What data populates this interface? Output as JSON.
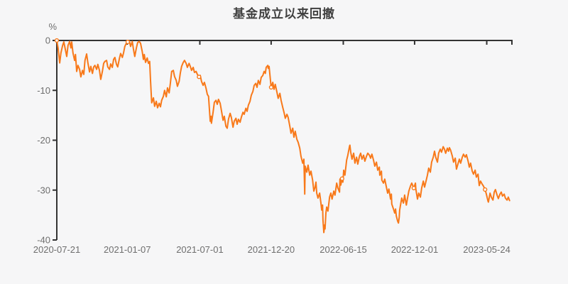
{
  "colors": {
    "background": "#f6f6f7",
    "line": "#f8791a",
    "marker_fill": "#ffffff",
    "axis": "#333333",
    "tick_label": "#6e6e6e",
    "title": "#404040"
  },
  "chart_data": {
    "type": "line",
    "title": "基金成立以来回撤",
    "ylabel": "%",
    "xlabel": "",
    "legend": [],
    "grid": false,
    "x_unit": "days since 2020-07-21",
    "x_domain": [
      0,
      1096
    ],
    "ylim": [
      -40,
      0
    ],
    "y_ticks": [
      0,
      -10,
      -20,
      -30,
      -40
    ],
    "x_ticks": [
      {
        "day": 0,
        "label": "2020-07-21"
      },
      {
        "day": 170,
        "label": "2021-01-07"
      },
      {
        "day": 345,
        "label": "2021-07-01"
      },
      {
        "day": 517,
        "label": "2021-12-20"
      },
      {
        "day": 691,
        "label": "2022-06-15"
      },
      {
        "day": 863,
        "label": "2022-12-01"
      },
      {
        "day": 1037,
        "label": "2023-05-24"
      }
    ],
    "markers": [
      [
        0,
        0
      ],
      [
        171,
        -0.3
      ],
      [
        343,
        -7.3
      ],
      [
        517,
        -9.4
      ],
      [
        688,
        -27.7
      ],
      [
        861,
        -29.6
      ],
      [
        1033,
        -29.9
      ]
    ],
    "points": [
      [
        0,
        0
      ],
      [
        3,
        -1.5
      ],
      [
        7,
        -4.5
      ],
      [
        10,
        -2.5
      ],
      [
        14,
        -1
      ],
      [
        17,
        -0.3
      ],
      [
        21,
        -2
      ],
      [
        24,
        -3.2
      ],
      [
        27,
        -1
      ],
      [
        31,
        -0.2
      ],
      [
        34,
        -1.5
      ],
      [
        36,
        -0.3
      ],
      [
        39,
        -2.5
      ],
      [
        43,
        -4
      ],
      [
        45,
        -2.8
      ],
      [
        48,
        -6.2
      ],
      [
        51,
        -5
      ],
      [
        55,
        -5.8
      ],
      [
        58,
        -7.3
      ],
      [
        62,
        -6
      ],
      [
        65,
        -6.8
      ],
      [
        68,
        -4
      ],
      [
        72,
        -2.7
      ],
      [
        75,
        -4.5
      ],
      [
        79,
        -6.3
      ],
      [
        82,
        -5.2
      ],
      [
        86,
        -6.6
      ],
      [
        89,
        -5.3
      ],
      [
        92,
        -5
      ],
      [
        96,
        -5.8
      ],
      [
        99,
        -4.8
      ],
      [
        103,
        -6
      ],
      [
        106,
        -7.8
      ],
      [
        110,
        -6.2
      ],
      [
        113,
        -4.6
      ],
      [
        116,
        -4.2
      ],
      [
        120,
        -4
      ],
      [
        123,
        -5.3
      ],
      [
        127,
        -5.8
      ],
      [
        130,
        -4.7
      ],
      [
        134,
        -5.4
      ],
      [
        137,
        -3.8
      ],
      [
        140,
        -3.4
      ],
      [
        144,
        -4.8
      ],
      [
        147,
        -5.3
      ],
      [
        151,
        -3.6
      ],
      [
        154,
        -2.6
      ],
      [
        158,
        -3.4
      ],
      [
        161,
        -2.5
      ],
      [
        164,
        -1.2
      ],
      [
        168,
        -0.5
      ],
      [
        171,
        -0.3
      ],
      [
        175,
        -0.1
      ],
      [
        178,
        -1.2
      ],
      [
        182,
        -0.2
      ],
      [
        185,
        -1.8
      ],
      [
        188,
        -3.2
      ],
      [
        192,
        -1.5
      ],
      [
        195,
        -0.4
      ],
      [
        199,
        -0.2
      ],
      [
        202,
        -0.6
      ],
      [
        206,
        -2.2
      ],
      [
        209,
        -3.8
      ],
      [
        211,
        -2.8
      ],
      [
        214,
        -4.4
      ],
      [
        218,
        -3.5
      ],
      [
        221,
        -4.6
      ],
      [
        224,
        -4.2
      ],
      [
        226,
        -8
      ],
      [
        228,
        -11
      ],
      [
        229,
        -12.5
      ],
      [
        233,
        -11.5
      ],
      [
        236,
        -13.2
      ],
      [
        240,
        -12.2
      ],
      [
        243,
        -13.5
      ],
      [
        247,
        -12.6
      ],
      [
        250,
        -13.3
      ],
      [
        253,
        -12
      ],
      [
        257,
        -11.2
      ],
      [
        260,
        -10
      ],
      [
        264,
        -11.3
      ],
      [
        267,
        -9.5
      ],
      [
        271,
        -10.5
      ],
      [
        274,
        -8.5
      ],
      [
        277,
        -6.2
      ],
      [
        281,
        -6
      ],
      [
        284,
        -7.2
      ],
      [
        288,
        -8
      ],
      [
        291,
        -9.2
      ],
      [
        295,
        -8.2
      ],
      [
        298,
        -6.5
      ],
      [
        301,
        -5.2
      ],
      [
        305,
        -4.4
      ],
      [
        308,
        -4
      ],
      [
        312,
        -4.6
      ],
      [
        315,
        -5.4
      ],
      [
        319,
        -4.6
      ],
      [
        322,
        -5.2
      ],
      [
        325,
        -6
      ],
      [
        329,
        -5.4
      ],
      [
        332,
        -6.4
      ],
      [
        336,
        -6.2
      ],
      [
        339,
        -6.8
      ],
      [
        343,
        -7.3
      ],
      [
        346,
        -7
      ],
      [
        349,
        -8.2
      ],
      [
        353,
        -9
      ],
      [
        356,
        -8.4
      ],
      [
        360,
        -9.6
      ],
      [
        363,
        -10.8
      ],
      [
        366,
        -11.2
      ],
      [
        370,
        -16.2
      ],
      [
        372,
        -15.2
      ],
      [
        373,
        -16.6
      ],
      [
        377,
        -14.4
      ],
      [
        380,
        -12.4
      ],
      [
        384,
        -12
      ],
      [
        387,
        -12.8
      ],
      [
        390,
        -11.8
      ],
      [
        394,
        -12.6
      ],
      [
        397,
        -14
      ],
      [
        401,
        -16
      ],
      [
        404,
        -15.2
      ],
      [
        408,
        -17.2
      ],
      [
        411,
        -17.6
      ],
      [
        414,
        -15.8
      ],
      [
        418,
        -14.6
      ],
      [
        421,
        -15.4
      ],
      [
        425,
        -17.4
      ],
      [
        428,
        -16.2
      ],
      [
        432,
        -15.6
      ],
      [
        435,
        -16.8
      ],
      [
        438,
        -15.8
      ],
      [
        442,
        -16.4
      ],
      [
        445,
        -15.4
      ],
      [
        449,
        -14.4
      ],
      [
        452,
        -14.8
      ],
      [
        456,
        -13.6
      ],
      [
        459,
        -14.2
      ],
      [
        462,
        -13
      ],
      [
        466,
        -12.2
      ],
      [
        469,
        -11
      ],
      [
        473,
        -10.2
      ],
      [
        476,
        -9
      ],
      [
        480,
        -8.6
      ],
      [
        483,
        -9.4
      ],
      [
        486,
        -8
      ],
      [
        490,
        -8.8
      ],
      [
        493,
        -7.4
      ],
      [
        497,
        -7
      ],
      [
        500,
        -6.2
      ],
      [
        503,
        -6.6
      ],
      [
        505,
        -5.4
      ],
      [
        509,
        -5
      ],
      [
        510,
        -5.6
      ],
      [
        512,
        -5.2
      ],
      [
        514,
        -6.8
      ],
      [
        517,
        -9.4
      ],
      [
        521,
        -8.4
      ],
      [
        524,
        -9.8
      ],
      [
        527,
        -8.8
      ],
      [
        531,
        -10.4
      ],
      [
        534,
        -11.6
      ],
      [
        538,
        -10.6
      ],
      [
        541,
        -12
      ],
      [
        545,
        -13.4
      ],
      [
        548,
        -14.4
      ],
      [
        551,
        -15.6
      ],
      [
        555,
        -14.8
      ],
      [
        558,
        -15.4
      ],
      [
        562,
        -17.2
      ],
      [
        565,
        -18.6
      ],
      [
        569,
        -17.6
      ],
      [
        572,
        -19.4
      ],
      [
        575,
        -18.2
      ],
      [
        579,
        -19.8
      ],
      [
        582,
        -20.4
      ],
      [
        586,
        -21.6
      ],
      [
        589,
        -23.2
      ],
      [
        593,
        -24.6
      ],
      [
        596,
        -23.8
      ],
      [
        598,
        -30.8
      ],
      [
        599,
        -25.2
      ],
      [
        603,
        -26.4
      ],
      [
        606,
        -25
      ],
      [
        610,
        -27
      ],
      [
        613,
        -26.2
      ],
      [
        617,
        -28
      ],
      [
        620,
        -30.2
      ],
      [
        623,
        -29.4
      ],
      [
        625,
        -28.4
      ],
      [
        627,
        -30.6
      ],
      [
        630,
        -31.6
      ],
      [
        634,
        -30.6
      ],
      [
        637,
        -32.6
      ],
      [
        639,
        -34
      ],
      [
        641,
        -33
      ],
      [
        642,
        -36
      ],
      [
        644,
        -38.5
      ],
      [
        646,
        -37
      ],
      [
        647,
        -37.8
      ],
      [
        649,
        -34.6
      ],
      [
        651,
        -33.4
      ],
      [
        654,
        -34.2
      ],
      [
        658,
        -31.4
      ],
      [
        661,
        -30.6
      ],
      [
        664,
        -31.8
      ],
      [
        668,
        -30.2
      ],
      [
        671,
        -31
      ],
      [
        675,
        -28.6
      ],
      [
        678,
        -29.6
      ],
      [
        682,
        -30.4
      ],
      [
        683,
        -27.8
      ],
      [
        685,
        -29
      ],
      [
        688,
        -27.7
      ],
      [
        690,
        -28.4
      ],
      [
        692,
        -26
      ],
      [
        695,
        -27
      ],
      [
        699,
        -24
      ],
      [
        702,
        -23
      ],
      [
        706,
        -21.2
      ],
      [
        707,
        -21
      ],
      [
        709,
        -22.4
      ],
      [
        712,
        -23.8
      ],
      [
        716,
        -22.6
      ],
      [
        719,
        -24.6
      ],
      [
        723,
        -23.4
      ],
      [
        726,
        -24.8
      ],
      [
        730,
        -23.2
      ],
      [
        733,
        -22.6
      ],
      [
        736,
        -23.8
      ],
      [
        740,
        -23
      ],
      [
        743,
        -24.2
      ],
      [
        747,
        -23.2
      ],
      [
        750,
        -22.6
      ],
      [
        754,
        -23
      ],
      [
        757,
        -23.6
      ],
      [
        760,
        -22.8
      ],
      [
        764,
        -24
      ],
      [
        767,
        -25.2
      ],
      [
        771,
        -24.4
      ],
      [
        774,
        -26
      ],
      [
        778,
        -25.4
      ],
      [
        779,
        -27
      ],
      [
        783,
        -26.2
      ],
      [
        784,
        -28
      ],
      [
        788,
        -28.6
      ],
      [
        791,
        -27.8
      ],
      [
        795,
        -29.4
      ],
      [
        798,
        -30.6
      ],
      [
        801,
        -29.8
      ],
      [
        805,
        -31.8
      ],
      [
        807,
        -30.8
      ],
      [
        808,
        -32.8
      ],
      [
        812,
        -33.8
      ],
      [
        815,
        -34.6
      ],
      [
        817,
        -33.8
      ],
      [
        819,
        -35.2
      ],
      [
        822,
        -36.2
      ],
      [
        824,
        -36.6
      ],
      [
        826,
        -35.4
      ],
      [
        827,
        -34
      ],
      [
        829,
        -33
      ],
      [
        832,
        -31.6
      ],
      [
        836,
        -32.6
      ],
      [
        839,
        -31
      ],
      [
        843,
        -33
      ],
      [
        846,
        -31.6
      ],
      [
        849,
        -30.2
      ],
      [
        853,
        -29.2
      ],
      [
        856,
        -28.6
      ],
      [
        860,
        -29.4
      ],
      [
        861,
        -29.6
      ],
      [
        865,
        -28.6
      ],
      [
        866,
        -29.8
      ],
      [
        870,
        -31.8
      ],
      [
        873,
        -30.6
      ],
      [
        877,
        -31.4
      ],
      [
        880,
        -29.6
      ],
      [
        884,
        -28.2
      ],
      [
        887,
        -29.4
      ],
      [
        890,
        -28.4
      ],
      [
        894,
        -27
      ],
      [
        897,
        -25.6
      ],
      [
        901,
        -26.4
      ],
      [
        904,
        -24.4
      ],
      [
        908,
        -23.4
      ],
      [
        911,
        -22.2
      ],
      [
        914,
        -23.4
      ],
      [
        918,
        -24.4
      ],
      [
        921,
        -22.6
      ],
      [
        925,
        -21.8
      ],
      [
        928,
        -22.4
      ],
      [
        932,
        -21.3
      ],
      [
        935,
        -21.8
      ],
      [
        938,
        -22.6
      ],
      [
        942,
        -21.6
      ],
      [
        945,
        -22.2
      ],
      [
        947,
        -21.5
      ],
      [
        950,
        -22
      ],
      [
        954,
        -23.2
      ],
      [
        957,
        -24.4
      ],
      [
        961,
        -23.6
      ],
      [
        964,
        -25.8
      ],
      [
        968,
        -24.6
      ],
      [
        971,
        -23.8
      ],
      [
        974,
        -24.6
      ],
      [
        978,
        -23.4
      ],
      [
        981,
        -22.8
      ],
      [
        985,
        -23.4
      ],
      [
        988,
        -22.9
      ],
      [
        992,
        -24.2
      ],
      [
        995,
        -25.4
      ],
      [
        998,
        -24.6
      ],
      [
        1002,
        -26.2
      ],
      [
        1005,
        -26.8
      ],
      [
        1009,
        -26
      ],
      [
        1012,
        -27.4
      ],
      [
        1016,
        -26.8
      ],
      [
        1019,
        -29.1
      ],
      [
        1022,
        -28.2
      ],
      [
        1026,
        -28.8
      ],
      [
        1029,
        -29.2
      ],
      [
        1033,
        -29.9
      ],
      [
        1036,
        -30.8
      ],
      [
        1040,
        -32.2
      ],
      [
        1041,
        -32.4
      ],
      [
        1045,
        -30.6
      ],
      [
        1048,
        -31.4
      ],
      [
        1052,
        -32
      ],
      [
        1055,
        -30.4
      ],
      [
        1058,
        -29.9
      ],
      [
        1062,
        -31
      ],
      [
        1065,
        -31.7
      ],
      [
        1069,
        -30.8
      ],
      [
        1072,
        -30.4
      ],
      [
        1075,
        -31.2
      ],
      [
        1079,
        -30.8
      ],
      [
        1082,
        -31.6
      ],
      [
        1086,
        -32
      ],
      [
        1089,
        -31.4
      ],
      [
        1092,
        -32.1
      ]
    ]
  }
}
